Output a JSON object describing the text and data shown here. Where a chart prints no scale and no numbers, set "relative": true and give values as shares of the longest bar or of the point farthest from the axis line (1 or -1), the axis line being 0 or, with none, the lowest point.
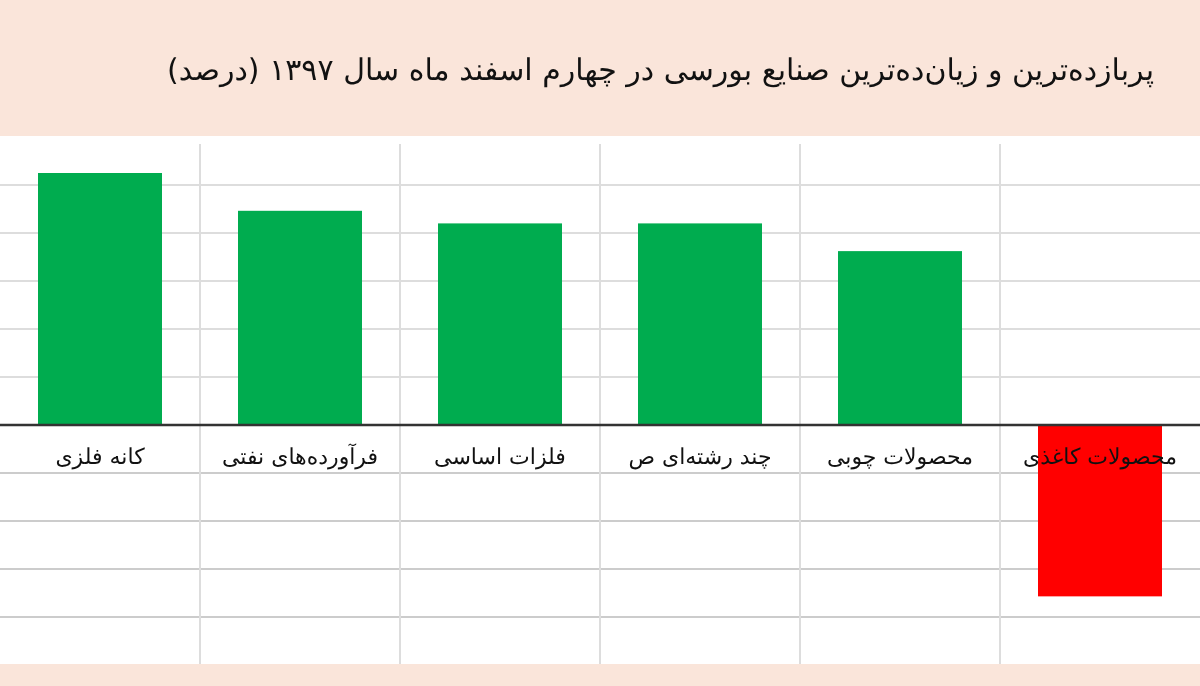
{
  "chart_data": {
    "type": "bar",
    "title": "پربازده‌ترین و زیان‌ده‌ترین صنایع بورسی در چهارم اسفند ماه سال ۱۳۹۷ (درصد)",
    "categories": [
      "کانه فلزی",
      "فرآورده‌های نفتی",
      "فلزات اساسی",
      "چند رشته‌ای ص",
      "محصولات چوبی",
      "محصولات کاغذی"
    ],
    "values": [
      1,
      0.85,
      0.8,
      0.8,
      0.69,
      -0.68
    ],
    "colors": [
      "#00ac4f",
      "#00ac4f",
      "#00ac4f",
      "#00ac4f",
      "#00ac4f",
      "#ff0000"
    ],
    "relative": true,
    "grid": true
  }
}
